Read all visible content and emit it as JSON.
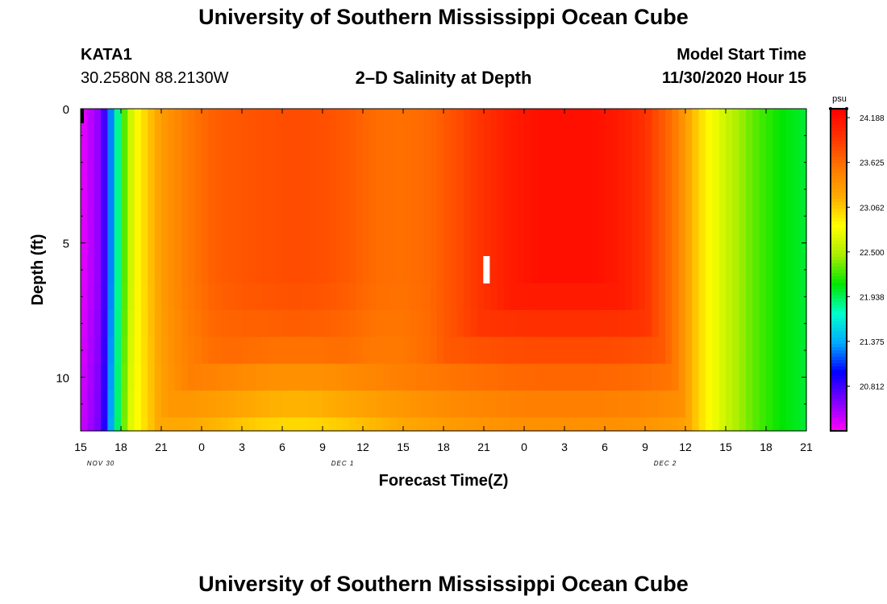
{
  "header": {
    "title_top": "University of Southern Mississippi Ocean Cube",
    "title_bottom": "University of Southern Mississippi Ocean Cube",
    "station_id": "KATA1",
    "station_coords": "30.2580N 88.2130W",
    "plot_title": "2–D Salinity at Depth",
    "model_start_label": "Model Start Time",
    "model_start_value": "11/30/2020 Hour 15"
  },
  "colors": {
    "scale": [
      "#ff00ff",
      "#8000ff",
      "#0000ff",
      "#00aaff",
      "#00ffcc",
      "#00e600",
      "#aaee00",
      "#ffff00",
      "#ffaa00",
      "#ff7700",
      "#ff3300",
      "#ff0000"
    ]
  },
  "chart_data": {
    "type": "heatmap",
    "title": "2-D Salinity at Depth",
    "xlabel": "Forecast Time(Z)",
    "ylabel": "Depth (ft)",
    "units": "psu",
    "x_tick_labels": [
      "15",
      "18",
      "21",
      "0",
      "3",
      "6",
      "9",
      "12",
      "15",
      "18",
      "21",
      "0",
      "3",
      "6",
      "9",
      "12",
      "15",
      "18",
      "21"
    ],
    "date_labels": [
      {
        "text": "NOV 30",
        "hour": 1.5
      },
      {
        "text": "DEC 1",
        "hour": 19.5
      },
      {
        "text": "DEC 2",
        "hour": 43.5
      }
    ],
    "x_hours": [
      0,
      54
    ],
    "y_ticks": [
      0,
      5,
      10
    ],
    "y_tick_labels": [
      "0",
      "5",
      "10"
    ],
    "ylim": [
      0,
      12
    ],
    "colorbar_ticks": [
      "24.188",
      "23.625",
      "23.062",
      "22.500",
      "21.938",
      "21.375",
      "20.812"
    ],
    "colorbar_min": 20.25,
    "colorbar_max": 24.3,
    "depth_bands": [
      0,
      6.5,
      7.5,
      8.5,
      9.5,
      10.5,
      11.5,
      12
    ],
    "time_hours": [
      0,
      1.5,
      2,
      3,
      4,
      6,
      8,
      10,
      12,
      14,
      16,
      18,
      20,
      22,
      24,
      26,
      28,
      30,
      32,
      34,
      36,
      38,
      40,
      42,
      44,
      46,
      48,
      50,
      52,
      54
    ],
    "salinity_profile_surface": [
      20.3,
      20.6,
      21.0,
      22.1,
      22.8,
      23.3,
      23.55,
      23.7,
      23.75,
      23.78,
      23.8,
      23.78,
      23.72,
      23.62,
      23.6,
      23.65,
      23.8,
      23.95,
      24.1,
      24.19,
      24.19,
      24.19,
      24.12,
      23.95,
      23.6,
      23.0,
      22.6,
      22.3,
      22.1,
      22.0
    ],
    "bottom_salinity_min": 23.2,
    "marker": {
      "hour": 30.2,
      "depth": 6.0,
      "label": "I"
    }
  }
}
